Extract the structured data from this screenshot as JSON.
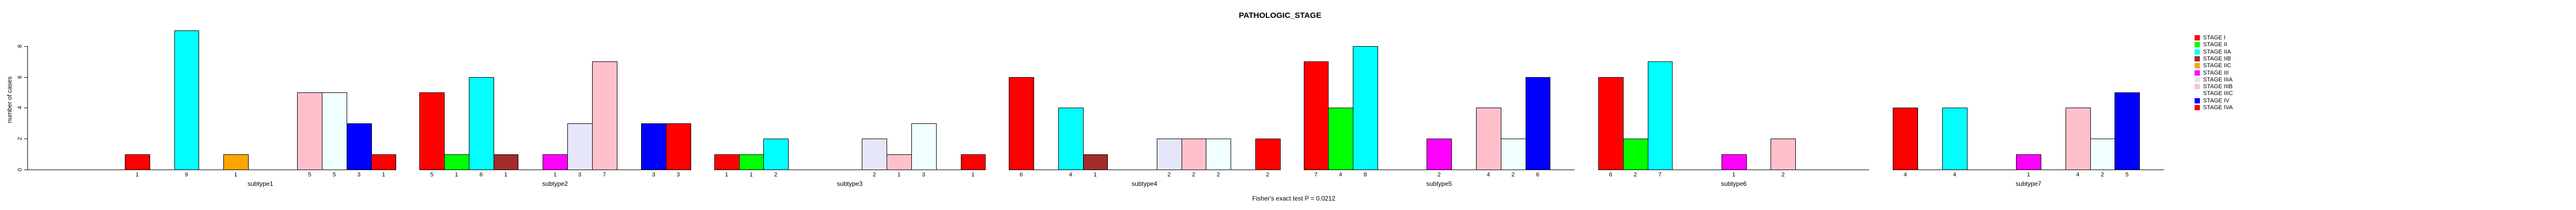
{
  "title": "PATHOLOGIC_STAGE",
  "footer": "Fisher's exact test P = 0.0212",
  "y_axis": {
    "label": "number of cases",
    "ticks": [
      0,
      2,
      4,
      6,
      8
    ]
  },
  "legend": {
    "position": "right",
    "entries": [
      {
        "name": "STAGE I",
        "color": "#FF0000"
      },
      {
        "name": "STAGE II",
        "color": "#00FF00"
      },
      {
        "name": "STAGE IIA",
        "color": "#00FFFF"
      },
      {
        "name": "STAGE IIB",
        "color": "#A52A2A"
      },
      {
        "name": "STAGE IIC",
        "color": "#FFA500"
      },
      {
        "name": "STAGE III",
        "color": "#FF00FF"
      },
      {
        "name": "STAGE IIIA",
        "color": "#E6E6FA"
      },
      {
        "name": "STAGE IIIB",
        "color": "#FFC0CB"
      },
      {
        "name": "STAGE IIIC",
        "color": "#F0FFFF"
      },
      {
        "name": "STAGE IV",
        "color": "#0000FF"
      },
      {
        "name": "STAGE IVA",
        "color": "#FF0000"
      }
    ]
  },
  "chart_data": {
    "type": "bar",
    "title": "PATHOLOGIC_STAGE",
    "xlabel": "",
    "ylabel": "number of cases",
    "ylim": [
      0,
      9
    ],
    "grid": false,
    "legend_position": "right",
    "bar_value_labels_shown": true,
    "annotations": [
      "Fisher's exact test P = 0.0212"
    ],
    "categories": [
      "subtype1",
      "subtype2",
      "subtype3",
      "subtype4",
      "subtype5",
      "subtype6",
      "subtype7"
    ],
    "series": [
      {
        "name": "STAGE I",
        "color": "#FF0000",
        "values": [
          1,
          5,
          1,
          6,
          7,
          6,
          4
        ]
      },
      {
        "name": "STAGE II",
        "color": "#00FF00",
        "values": [
          0,
          1,
          1,
          0,
          4,
          2,
          0
        ]
      },
      {
        "name": "STAGE IIA",
        "color": "#00FFFF",
        "values": [
          9,
          6,
          2,
          4,
          8,
          7,
          4
        ]
      },
      {
        "name": "STAGE IIB",
        "color": "#A52A2A",
        "values": [
          0,
          1,
          0,
          1,
          0,
          0,
          0
        ]
      },
      {
        "name": "STAGE IIC",
        "color": "#FFA500",
        "values": [
          1,
          0,
          0,
          0,
          0,
          0,
          0
        ]
      },
      {
        "name": "STAGE III",
        "color": "#FF00FF",
        "values": [
          0,
          1,
          0,
          0,
          2,
          1,
          1
        ]
      },
      {
        "name": "STAGE IIIA",
        "color": "#E6E6FA",
        "values": [
          0,
          3,
          2,
          2,
          0,
          0,
          0
        ]
      },
      {
        "name": "STAGE IIIB",
        "color": "#FFC0CB",
        "values": [
          5,
          7,
          1,
          2,
          4,
          2,
          4
        ]
      },
      {
        "name": "STAGE IIIC",
        "color": "#F0FFFF",
        "values": [
          5,
          0,
          3,
          2,
          2,
          0,
          2
        ]
      },
      {
        "name": "STAGE IV",
        "color": "#0000FF",
        "values": [
          3,
          3,
          0,
          0,
          6,
          0,
          5
        ]
      },
      {
        "name": "STAGE IVA",
        "color": "#FF0000",
        "values": [
          1,
          3,
          1,
          2,
          0,
          0,
          0
        ]
      }
    ]
  }
}
